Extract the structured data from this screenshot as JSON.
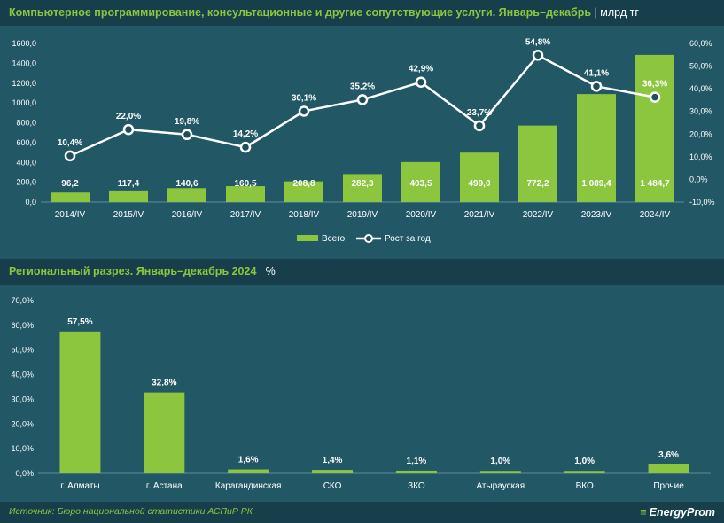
{
  "colors": {
    "bar": "#8cc63f",
    "line": "#ffffff",
    "title": "#8cc63f",
    "background": "#1d4e5c"
  },
  "header1": {
    "title": "Компьютерное программирование, консультационные и другие сопутствующие услуги. Январь–декабрь",
    "sep": " | ",
    "unit": "млрд тг"
  },
  "header2": {
    "title": "Региональный разрез. Январь–декабрь 2024",
    "sep": " | ",
    "unit": "%"
  },
  "footer": {
    "source": "Источник: Бюро национальной статистики АСПиР РК",
    "logo": "EnergyProm"
  },
  "legend": {
    "bar": "Всего",
    "line": "Рост за год"
  },
  "chart_data": [
    {
      "type": "bar+line",
      "title": "Компьютерное программирование, консультационные и другие сопутствующие услуги. Январь–декабрь",
      "unit": "млрд тг",
      "categories": [
        "2014/IV",
        "2015/IV",
        "2016/IV",
        "2017/IV",
        "2018/IV",
        "2019/IV",
        "2020/IV",
        "2021/IV",
        "2022/IV",
        "2023/IV",
        "2024/IV"
      ],
      "series": [
        {
          "name": "Всего",
          "type": "bar",
          "axis": "left",
          "values": [
            96.2,
            117.4,
            140.6,
            160.5,
            208.8,
            282.3,
            403.5,
            499.0,
            772.2,
            1089.4,
            1484.7
          ],
          "labels": [
            "96,2",
            "117,4",
            "140,6",
            "160,5",
            "208,8",
            "282,3",
            "403,5",
            "499,0",
            "772,2",
            "1 089,4",
            "1 484,7"
          ]
        },
        {
          "name": "Рост за год",
          "type": "line",
          "axis": "right",
          "values": [
            10.4,
            22.0,
            19.8,
            14.2,
            30.1,
            35.2,
            42.9,
            23.7,
            54.8,
            41.1,
            36.3
          ],
          "labels": [
            "10,4%",
            "22,0%",
            "19,8%",
            "14,2%",
            "30,1%",
            "35,2%",
            "42,9%",
            "23,7%",
            "54,8%",
            "41,1%",
            "36,3%"
          ]
        }
      ],
      "ylim_left": [
        0,
        1600
      ],
      "yticks_left": [
        "0,0",
        "200,0",
        "400,0",
        "600,0",
        "800,0",
        "1000,0",
        "1200,0",
        "1400,0",
        "1600,0"
      ],
      "ylim_right": [
        -10,
        60
      ],
      "yticks_right": [
        "-10,0%",
        "0,0%",
        "10,0%",
        "20,0%",
        "30,0%",
        "40,0%",
        "50,0%",
        "60,0%"
      ],
      "legend_position": "bottom"
    },
    {
      "type": "bar",
      "title": "Региональный разрез. Январь–декабрь 2024",
      "unit": "%",
      "categories": [
        "г. Алматы",
        "г. Астана",
        "Карагандинская",
        "СКО",
        "ЗКО",
        "Атырауская",
        "ВКО",
        "Прочие"
      ],
      "values": [
        57.5,
        32.8,
        1.6,
        1.4,
        1.1,
        1.0,
        1.0,
        3.6
      ],
      "labels": [
        "57,5%",
        "32,8%",
        "1,6%",
        "1,4%",
        "1,1%",
        "1,0%",
        "1,0%",
        "3,6%"
      ],
      "ylim": [
        0,
        70
      ],
      "yticks": [
        "0,0%",
        "10,0%",
        "20,0%",
        "30,0%",
        "40,0%",
        "50,0%",
        "60,0%",
        "70,0%"
      ]
    }
  ]
}
